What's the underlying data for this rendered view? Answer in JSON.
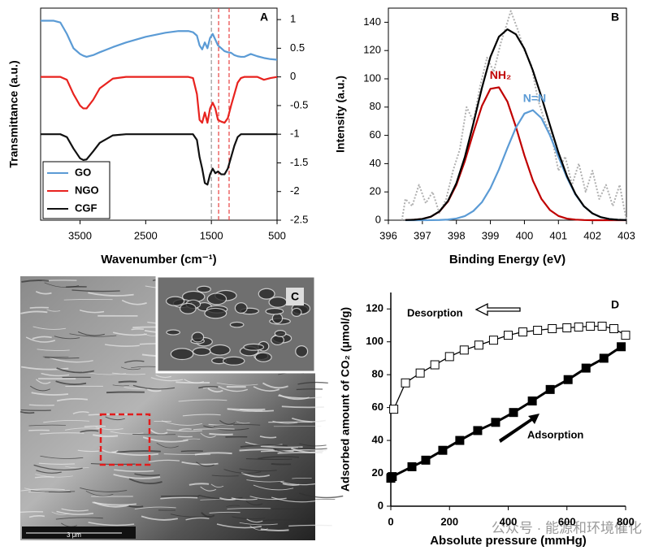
{
  "chart_data": [
    {
      "type": "line",
      "label": "A",
      "xlabel": "Wavenumber (cm⁻¹)",
      "ylabel": "Transmittance (a.u.)",
      "xlim": [
        4100,
        500
      ],
      "xticks": [
        3500,
        2500,
        1500,
        500
      ],
      "ylim": [
        -2.5,
        1.2
      ],
      "yticks": [
        1,
        0.5,
        0,
        -0.5,
        -1,
        -1.5,
        -2,
        -2.5
      ],
      "y_axis_side": "right",
      "legend": "lower left",
      "frame": true,
      "vlines": [
        {
          "value": 1500,
          "color": "#999999"
        },
        {
          "value": 1390,
          "color": "#e84040"
        },
        {
          "value": 1230,
          "color": "#e84040"
        }
      ],
      "x": [
        4100,
        3900,
        3800,
        3700,
        3600,
        3500,
        3450,
        3400,
        3300,
        3200,
        3000,
        2800,
        2500,
        2200,
        2000,
        1850,
        1780,
        1720,
        1680,
        1640,
        1600,
        1560,
        1520,
        1480,
        1440,
        1400,
        1350,
        1300,
        1250,
        1200,
        1150,
        1100,
        1050,
        1000,
        900,
        800,
        700,
        600,
        500
      ],
      "series": [
        {
          "name": "GO",
          "color": "#5b9bd5",
          "values": [
            0.98,
            0.98,
            0.95,
            0.75,
            0.5,
            0.4,
            0.37,
            0.35,
            0.38,
            0.43,
            0.52,
            0.6,
            0.7,
            0.77,
            0.8,
            0.8,
            0.78,
            0.72,
            0.55,
            0.48,
            0.6,
            0.5,
            0.68,
            0.75,
            0.65,
            0.55,
            0.5,
            0.45,
            0.43,
            0.42,
            0.38,
            0.36,
            0.35,
            0.35,
            0.4,
            0.36,
            0.33,
            0.31,
            0.3
          ]
        },
        {
          "name": "NGO",
          "color": "#e8231f",
          "values": [
            0,
            0,
            0,
            -0.05,
            -0.3,
            -0.5,
            -0.55,
            -0.55,
            -0.4,
            -0.2,
            -0.03,
            0,
            0,
            0,
            0,
            0,
            -0.02,
            -0.3,
            -0.75,
            -0.8,
            -0.62,
            -0.8,
            -0.55,
            -0.45,
            -0.55,
            -0.75,
            -0.78,
            -0.8,
            -0.72,
            -0.5,
            -0.3,
            -0.1,
            -0.02,
            0,
            0,
            0,
            -0.05,
            -0.02,
            0
          ]
        },
        {
          "name": "CGF",
          "color": "#111111",
          "values": [
            -1,
            -1,
            -1,
            -1.05,
            -1.25,
            -1.42,
            -1.45,
            -1.44,
            -1.3,
            -1.15,
            -1.02,
            -1,
            -1,
            -1,
            -1,
            -1,
            -1,
            -1.1,
            -1.4,
            -1.6,
            -1.85,
            -1.88,
            -1.7,
            -1.6,
            -1.68,
            -1.65,
            -1.7,
            -1.7,
            -1.6,
            -1.4,
            -1.2,
            -1.05,
            -1,
            -1,
            -1,
            -1,
            -1,
            -1,
            -1
          ]
        }
      ]
    },
    {
      "type": "line",
      "label": "B",
      "xlabel": "Binding Energy (eV)",
      "ylabel": "Intensity (a.u.)",
      "xlim": [
        396,
        403
      ],
      "xticks": [
        396,
        397,
        398,
        399,
        400,
        401,
        402,
        403
      ],
      "ylim": [
        0,
        150
      ],
      "yticks": [
        0,
        20,
        40,
        60,
        80,
        100,
        120,
        140
      ],
      "y_axis_side": "left",
      "frame": true,
      "x": [
        396.5,
        396.75,
        397,
        397.25,
        397.5,
        397.75,
        398,
        398.25,
        398.5,
        398.75,
        399,
        399.25,
        399.5,
        399.75,
        400,
        400.25,
        400.5,
        400.75,
        401,
        401.25,
        401.5,
        401.75,
        402,
        402.25,
        402.5,
        402.75,
        403
      ],
      "series": [
        {
          "color": "#b0b0b0",
          "style": "dotted",
          "x": [
            396.4,
            396.5,
            396.7,
            396.9,
            397.1,
            397.3,
            397.5,
            397.7,
            397.9,
            398.1,
            398.3,
            398.5,
            398.7,
            398.9,
            399.1,
            399.3,
            399.5,
            399.6,
            399.8,
            400,
            400.2,
            400.4,
            400.6,
            400.8,
            401,
            401.2,
            401.4,
            401.6,
            401.8,
            402,
            402.2,
            402.4,
            402.6,
            402.8,
            403
          ],
          "values": [
            0,
            15,
            10,
            25,
            12,
            20,
            5,
            15,
            35,
            50,
            80,
            70,
            95,
            115,
            105,
            125,
            140,
            148,
            135,
            120,
            110,
            85,
            70,
            60,
            35,
            45,
            25,
            40,
            20,
            35,
            15,
            25,
            10,
            25,
            0
          ]
        },
        {
          "name": "NH₂",
          "color": "#c00000",
          "values": [
            0.08,
            0.28,
            0.9,
            2.5,
            6.1,
            13.1,
            25,
            41.9,
            62,
            80.8,
            92.9,
            94,
            83.9,
            66,
            45.8,
            28,
            15.1,
            7.2,
            3,
            1.1,
            0.4,
            0.1,
            0,
            0,
            0,
            0,
            0
          ]
        },
        {
          "name": "N=N",
          "color": "#5b9bd5",
          "values": [
            0,
            0,
            0.01,
            0.04,
            0.15,
            0.44,
            1.2,
            2.9,
            6.5,
            12.7,
            22.6,
            35.8,
            51.1,
            65.5,
            75.4,
            77.8,
            72.2,
            60.1,
            44.9,
            30.2,
            18.2,
            9.8,
            4.8,
            2.1,
            0.8,
            0.3,
            0.1
          ]
        },
        {
          "color": "#000000",
          "values": [
            0.1,
            0.3,
            0.9,
            2.5,
            6.2,
            13.5,
            26.2,
            44.8,
            68.5,
            93.5,
            115.5,
            129.8,
            135,
            131.5,
            121.2,
            105.8,
            87.3,
            67.3,
            47.9,
            31.3,
            18.6,
            9.9,
            4.8,
            2.1,
            0.8,
            0.3,
            0.1
          ]
        }
      ]
    },
    {
      "type": "line",
      "label": "D",
      "xlabel": "Absolute pressure (mmHg)",
      "ylabel": "Adsorbed amount of CO₂ (μmol/g)",
      "xlim": [
        0,
        800
      ],
      "xticks": [
        0,
        200,
        400,
        600,
        800
      ],
      "ylim": [
        0,
        130
      ],
      "yticks": [
        0,
        20,
        40,
        60,
        80,
        100,
        120
      ],
      "y_axis_side": "left",
      "frame": false,
      "series": [
        {
          "name": "Desorption",
          "color": "#000000",
          "marker": "open",
          "x": [
            800,
            760,
            720,
            680,
            640,
            600,
            550,
            500,
            450,
            400,
            350,
            300,
            250,
            200,
            150,
            100,
            50,
            10
          ],
          "values": [
            104,
            108,
            109.5,
            109.5,
            109,
            108.5,
            108,
            107,
            106,
            104,
            101,
            98,
            95,
            91,
            86,
            81,
            75,
            59
          ]
        },
        {
          "name": "Adsorption",
          "color": "#000000",
          "marker": "filled",
          "x": [
            0,
            5,
            72,
            119,
            177,
            235,
            296,
            357,
            418,
            482,
            543,
            604,
            665,
            726,
            785
          ],
          "values": [
            17,
            18,
            24,
            28,
            34,
            40,
            46,
            51,
            57,
            64,
            71,
            77,
            84,
            90,
            97
          ]
        }
      ]
    }
  ],
  "image_panel": {
    "label": "C",
    "scale_bar": "3 μm"
  },
  "watermark": "公众号 · 能源和环境催化"
}
